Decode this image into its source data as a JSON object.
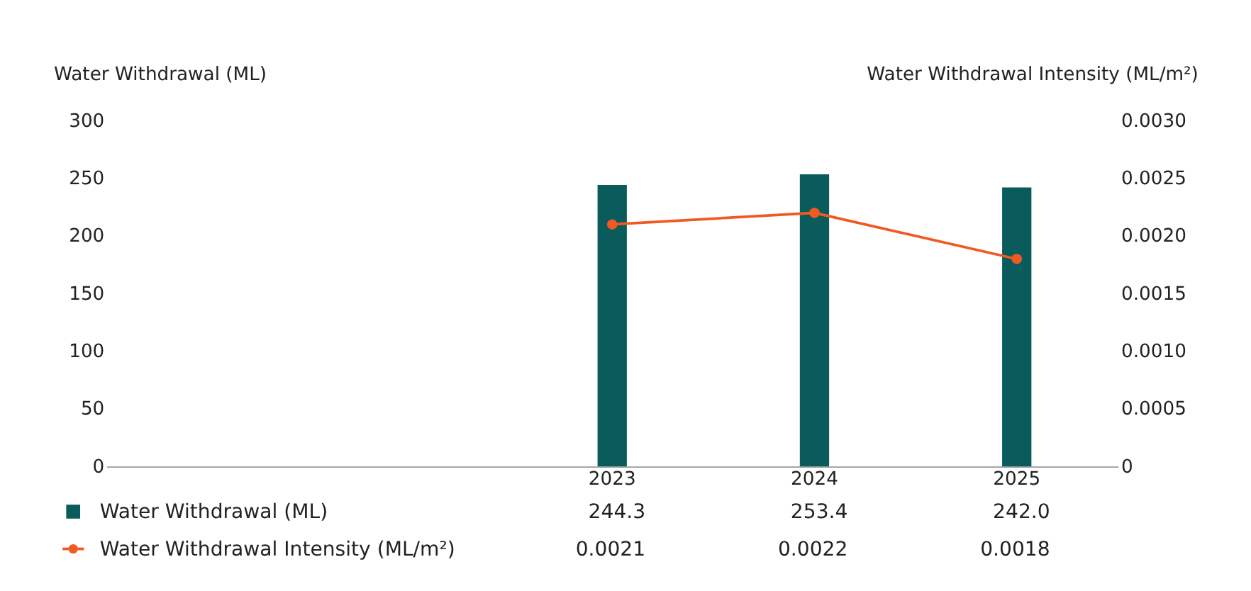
{
  "chart_data": {
    "type": "bar",
    "categories": [
      null,
      null,
      "2023",
      "2024",
      "2025"
    ],
    "ylabel": "Water Withdrawal (ML)",
    "y2label": "Water Withdrawal Intensity (ML/m²)",
    "ylim": [
      0,
      300
    ],
    "yticks": [
      0,
      50,
      100,
      150,
      200,
      250,
      300
    ],
    "y2lim": [
      0,
      0.003
    ],
    "y2ticks": [
      0,
      {
        "value": 0.0005,
        "label": "0.0005"
      },
      {
        "value": 0.001,
        "label": "0.0010"
      },
      {
        "value": 0.0015,
        "label": "0.0015"
      },
      {
        "value": 0.002,
        "label": "0.0020"
      },
      {
        "value": 0.0025,
        "label": "0.0025"
      },
      {
        "value": 0.003,
        "label": "0.0030"
      }
    ],
    "legend": "bottom",
    "grid": false,
    "marker": "circle",
    "series": [
      {
        "name": "Water Withdrawal (ML)",
        "color": "#0a5c5c",
        "values": [
          null,
          null,
          244.3,
          253.4,
          242.0
        ],
        "value_labels": [
          null,
          null,
          "244.3",
          "253.4",
          "242.0"
        ]
      },
      {
        "name": "Water Withdrawal Intensity (ML/m²)",
        "type": "line",
        "line_style": "solid",
        "axis": "y2",
        "color": "#f05a22",
        "values": [
          null,
          null,
          0.0021,
          0.0022,
          0.0018
        ],
        "value_labels": [
          null,
          null,
          "0.0021",
          "0.0022",
          "0.0018"
        ]
      }
    ]
  }
}
